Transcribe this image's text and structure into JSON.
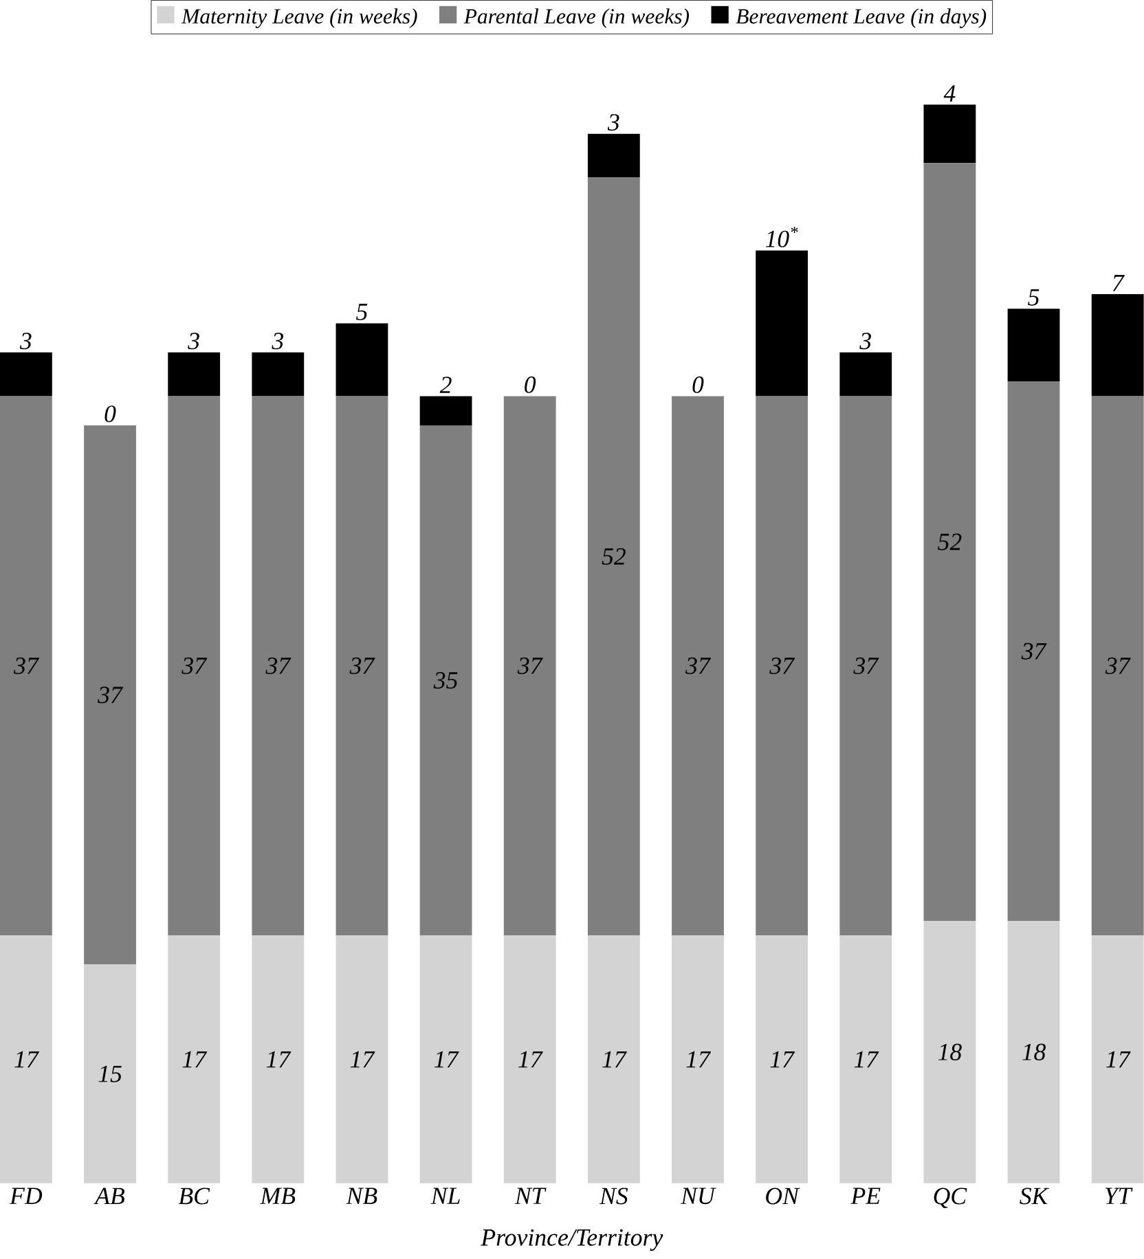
{
  "chart_data": {
    "type": "bar",
    "stacked": true,
    "legend": "top",
    "xlabel": "Province/Territory",
    "data_labels": true,
    "categories": [
      "FD",
      "AB",
      "BC",
      "MB",
      "NB",
      "NL",
      "NT",
      "NS",
      "NU",
      "ON",
      "PE",
      "QC",
      "SK",
      "YT"
    ],
    "series": [
      {
        "name": "Maternity Leave (in weeks)",
        "color": "#d3d3d3",
        "values": [
          17,
          15,
          17,
          17,
          17,
          17,
          17,
          17,
          17,
          17,
          17,
          18,
          18,
          17
        ],
        "value_labels": [
          "17",
          "15",
          "17",
          "17",
          "17",
          "17",
          "17",
          "17",
          "17",
          "17",
          "17",
          "18",
          "18",
          "17"
        ]
      },
      {
        "name": "Parental Leave (in weeks)",
        "color": "#7f7f7f",
        "values": [
          37,
          37,
          37,
          37,
          37,
          35,
          37,
          52,
          37,
          37,
          37,
          52,
          37,
          37
        ],
        "value_labels": [
          "37",
          "37",
          "37",
          "37",
          "37",
          "35",
          "37",
          "52",
          "37",
          "37",
          "37",
          "52",
          "37",
          "37"
        ]
      },
      {
        "name": "Bereavement Leave (in days)",
        "color": "#000000",
        "values": [
          3,
          0,
          3,
          3,
          5,
          2,
          0,
          3,
          0,
          10,
          3,
          4,
          5,
          7
        ],
        "value_labels": [
          "3",
          "0",
          "3",
          "3",
          "5",
          "2",
          "0",
          "3",
          "0",
          "10$^{*}$",
          "3",
          "4",
          "5",
          "7"
        ]
      }
    ]
  }
}
